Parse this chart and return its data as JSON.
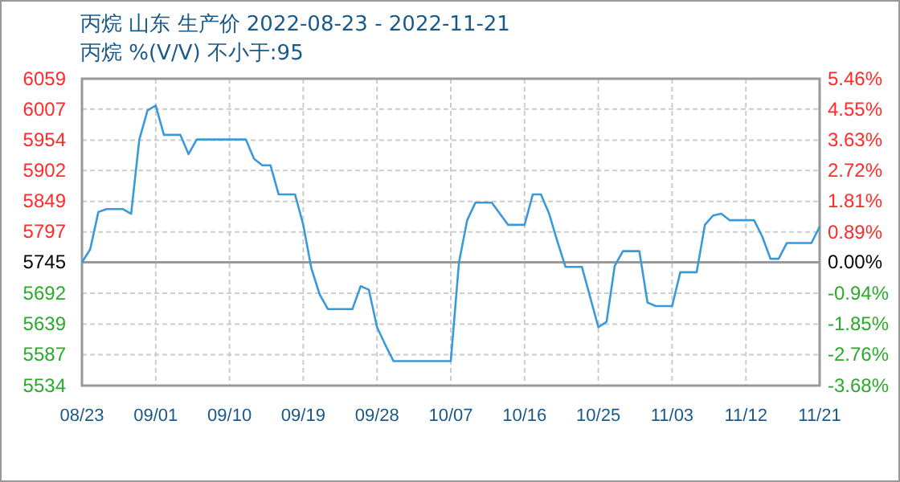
{
  "chart_data": {
    "type": "line",
    "title": "丙烷 山东 生产价 2022-08-23 - 2022-11-21",
    "subtitle": "丙烷 %(V/V)  不小于:95",
    "x": [
      "2022-08-23",
      "2022-08-24",
      "2022-08-25",
      "2022-08-26",
      "2022-08-28",
      "2022-08-29",
      "2022-08-30",
      "2022-08-31",
      "2022-09-01",
      "2022-09-02",
      "2022-09-04",
      "2022-09-05",
      "2022-09-06",
      "2022-09-12",
      "2022-09-13",
      "2022-09-14",
      "2022-09-15",
      "2022-09-16",
      "2022-09-18",
      "2022-09-19",
      "2022-09-20",
      "2022-09-21",
      "2022-09-22",
      "2022-09-25",
      "2022-09-26",
      "2022-09-27",
      "2022-09-28",
      "2022-09-29",
      "2022-09-30",
      "2022-10-07",
      "2022-10-08",
      "2022-10-09",
      "2022-10-10",
      "2022-10-12",
      "2022-10-14",
      "2022-10-16",
      "2022-10-17",
      "2022-10-18",
      "2022-10-19",
      "2022-10-20",
      "2022-10-21",
      "2022-10-23",
      "2022-10-25",
      "2022-10-26",
      "2022-10-27",
      "2022-10-28",
      "2022-10-30",
      "2022-10-31",
      "2022-11-01",
      "2022-11-03",
      "2022-11-04",
      "2022-11-06",
      "2022-11-07",
      "2022-11-08",
      "2022-11-09",
      "2022-11-10",
      "2022-11-13",
      "2022-11-14",
      "2022-11-15",
      "2022-11-16",
      "2022-11-17",
      "2022-11-20",
      "2022-11-21"
    ],
    "series": [
      {
        "color": "#3a9ad9",
        "values": [
          5745,
          5767,
          5831,
          5836,
          5836,
          5828,
          5955,
          6005,
          6013,
          5963,
          5963,
          5930,
          5955,
          5955,
          5922,
          5911,
          5911,
          5861,
          5861,
          5809,
          5734,
          5690,
          5665,
          5665,
          5704,
          5698,
          5634,
          5604,
          5576,
          5576,
          5745,
          5817,
          5847,
          5847,
          5809,
          5809,
          5861,
          5861,
          5828,
          5781,
          5737,
          5737,
          5634,
          5643,
          5739,
          5764,
          5764,
          5676,
          5670,
          5670,
          5728,
          5728,
          5809,
          5825,
          5828,
          5817,
          5817,
          5789,
          5751,
          5751,
          5778,
          5778,
          5806
        ]
      }
    ],
    "xlim": [
      "2022-08-23",
      "2022-11-21"
    ],
    "xticks": [
      {
        "value": "2022-08-23",
        "label": "08/23"
      },
      {
        "value": "2022-09-01",
        "label": "09/01"
      },
      {
        "value": "2022-09-10",
        "label": "09/10"
      },
      {
        "value": "2022-09-19",
        "label": "09/19"
      },
      {
        "value": "2022-09-28",
        "label": "09/28"
      },
      {
        "value": "2022-10-07",
        "label": "10/07"
      },
      {
        "value": "2022-10-16",
        "label": "10/16"
      },
      {
        "value": "2022-10-25",
        "label": "10/25"
      },
      {
        "value": "2022-11-03",
        "label": "11/03"
      },
      {
        "value": "2022-11-12",
        "label": "11/12"
      },
      {
        "value": "2022-11-21",
        "label": "11/21"
      }
    ],
    "ylim": [
      5534,
      6059
    ],
    "yticks": [
      5534,
      5587,
      5639,
      5692,
      5745,
      5797,
      5849,
      5902,
      5954,
      6007,
      6059
    ],
    "y2lim": [
      -3.68,
      5.46
    ],
    "y2ticks": [
      {
        "value": -3.68,
        "label": "-3.68%"
      },
      {
        "value": -2.76,
        "label": "-2.76%"
      },
      {
        "value": -1.85,
        "label": "-1.85%"
      },
      {
        "value": -0.94,
        "label": "-0.94%"
      },
      {
        "value": 0,
        "label": "0.00%"
      },
      {
        "value": 0.89,
        "label": "0.89%"
      },
      {
        "value": 1.81,
        "label": "1.81%"
      },
      {
        "value": 2.72,
        "label": "2.72%"
      },
      {
        "value": 3.63,
        "label": "3.63%"
      },
      {
        "value": 4.55,
        "label": "4.55%"
      },
      {
        "value": 5.46,
        "label": "5.46%"
      }
    ],
    "ref_lines": [
      {
        "axis": "y",
        "value": 5745,
        "color": "#999999"
      }
    ],
    "grid": true,
    "marker": "none",
    "line_style": "solid"
  }
}
